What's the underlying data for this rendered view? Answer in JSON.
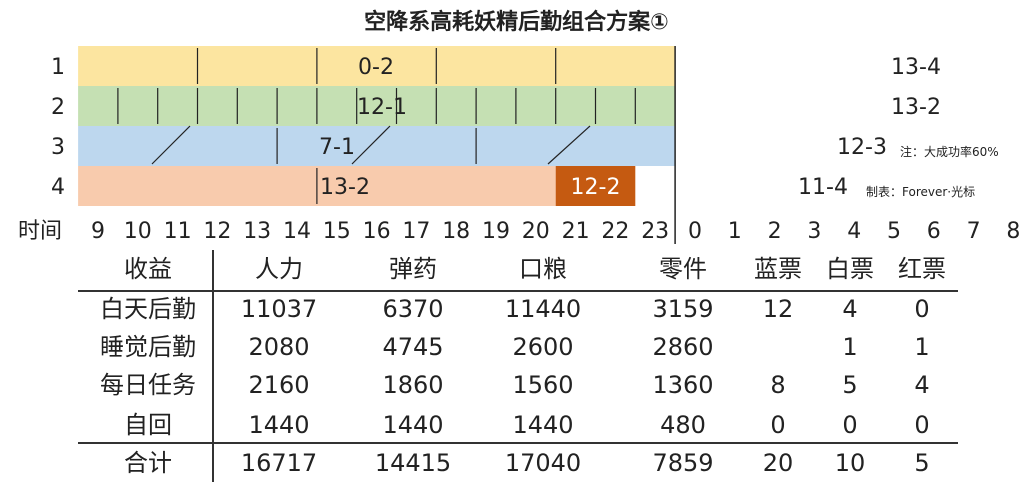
{
  "title": "空降系高耗妖精后勤组合方案①",
  "chart_data": {
    "type": "gantt",
    "title": "空降系高耗妖精后勤组合方案①",
    "time_axis_label": "时间",
    "hours": [
      "9",
      "10",
      "11",
      "12",
      "13",
      "14",
      "15",
      "16",
      "17",
      "18",
      "19",
      "20",
      "21",
      "22",
      "23",
      "0",
      "1",
      "2",
      "3",
      "4",
      "5",
      "6",
      "7",
      "8"
    ],
    "rows": [
      {
        "label": "1",
        "segments": [
          {
            "start": 8.5,
            "end": 23.5,
            "label": "0-2",
            "color": "#fce5a0",
            "ticks": [
              11.5,
              14.5,
              17.5,
              20.5
            ]
          },
          {
            "start": 2.5,
            "end": 8.5,
            "label": "13-4",
            "color": "#fdd867",
            "ticks": []
          }
        ]
      },
      {
        "label": "2",
        "segments": [
          {
            "start": 8.5,
            "end": 23.5,
            "label": "12-1",
            "color": "#c5e0b3",
            "ticks": [
              9.5,
              10.5,
              11.5,
              12.5,
              13.5,
              14.5,
              15.5,
              16.5,
              17.5,
              18.5,
              19.5,
              20.5,
              21.5,
              22.5
            ]
          },
          {
            "start": 2.5,
            "end": 8.5,
            "label": "13-2",
            "color": "#a9d18e",
            "ticks": []
          }
        ]
      },
      {
        "label": "3",
        "segments": [
          {
            "start": 8.5,
            "end": 23.5,
            "label": "7-1",
            "color": "#bdd7ee",
            "ticks": [
              13.5,
              18.5
            ]
          },
          {
            "start": 23.5,
            "end": 8.5,
            "label": "12-3",
            "color": "#9dc3e6",
            "ticks": []
          }
        ]
      },
      {
        "label": "4",
        "segments": [
          {
            "start": 8.5,
            "end": 20.5,
            "label": "13-2",
            "color": "#f8cbad",
            "ticks": [
              14.5
            ]
          },
          {
            "start": 20.5,
            "end": 22.5,
            "label": "12-2",
            "color": "#c55a11",
            "ticks": []
          },
          {
            "start": 22.5,
            "end": 8.5,
            "label": "11-4",
            "color": "#f4b183",
            "ticks": []
          }
        ]
      }
    ],
    "notes": [
      "注：大成功率60%",
      "制表：Forever·光标"
    ]
  },
  "summary": {
    "headers": [
      "收益",
      "人力",
      "弹药",
      "口粮",
      "零件",
      "蓝票",
      "白票",
      "红票"
    ],
    "rows": [
      [
        "白天后勤",
        "11037",
        "6370",
        "11440",
        "3159",
        "12",
        "4",
        "0"
      ],
      [
        "睡觉后勤",
        "2080",
        "4745",
        "2600",
        "2860",
        "",
        "1",
        "1"
      ],
      [
        "每日任务",
        "2160",
        "1860",
        "1560",
        "1360",
        "8",
        "5",
        "4"
      ],
      [
        "自回",
        "1440",
        "1440",
        "1440",
        "480",
        "0",
        "0",
        "0"
      ],
      [
        "合计",
        "16717",
        "14415",
        "17040",
        "7859",
        "20",
        "10",
        "5"
      ]
    ]
  }
}
